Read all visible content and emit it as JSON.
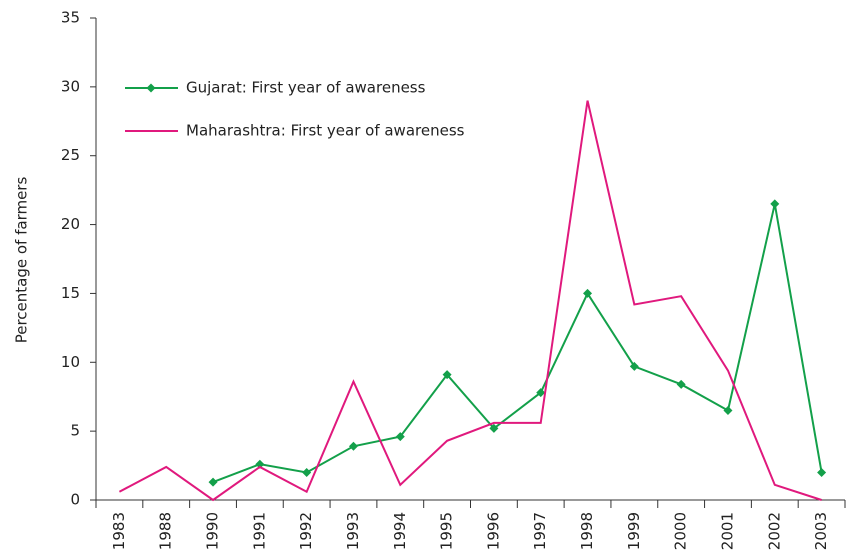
{
  "chart_data": {
    "type": "line",
    "y_label": "Percentage of farmers",
    "categories": [
      "1983",
      "1988",
      "1990",
      "1991",
      "1992",
      "1993",
      "1994",
      "1995",
      "1996",
      "1997",
      "1998",
      "1999",
      "2000",
      "2001",
      "2002",
      "2003"
    ],
    "series": [
      {
        "name": "Gujarat: First year of awareness",
        "color": "#13a04a",
        "marker": "diamond",
        "values": [
          null,
          null,
          1.3,
          2.6,
          2.0,
          3.9,
          4.6,
          9.1,
          5.2,
          7.8,
          15.0,
          9.7,
          8.4,
          6.5,
          21.5,
          2.0
        ]
      },
      {
        "name": "Maharashtra: First year of awareness",
        "color": "#e0197d",
        "values": [
          0.6,
          2.4,
          0,
          2.4,
          0.6,
          8.6,
          1.1,
          4.3,
          5.6,
          5.6,
          29.0,
          14.2,
          14.8,
          9.4,
          1.1,
          0
        ]
      }
    ],
    "ylim": [
      0,
      35
    ],
    "yticks": [
      0,
      5,
      10,
      15,
      20,
      25,
      30,
      35
    ],
    "grid": false,
    "legend": "upper left"
  }
}
